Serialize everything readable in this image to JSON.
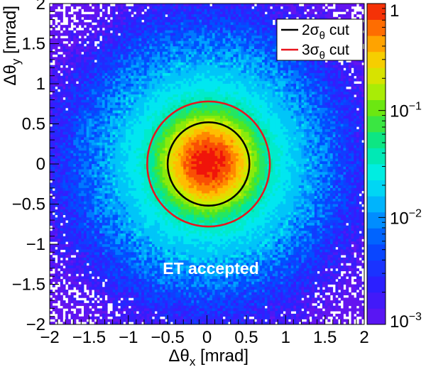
{
  "chart_data": {
    "type": "heatmap",
    "title": "",
    "xlabel_base": "Δθ",
    "xlabel_sub": "x",
    "xlabel_unit": " [mrad]",
    "ylabel_base": "Δθ",
    "ylabel_sub": "y",
    "ylabel_unit": " [mrad]",
    "xlim": [
      -2,
      2
    ],
    "ylim": [
      -2,
      2
    ],
    "xticks": [
      -2,
      -1.5,
      -1,
      -0.5,
      0,
      0.5,
      1,
      1.5,
      2
    ],
    "xtick_labels": [
      "−2",
      "−1.5",
      "−1",
      "−0.5",
      "0",
      "0.5",
      "1",
      "1.5",
      "2"
    ],
    "yticks": [
      -2,
      -1.5,
      -1,
      -0.5,
      0,
      0.5,
      1,
      1.5,
      2
    ],
    "ytick_labels": [
      "−2",
      "−1.5",
      "−1",
      "−0.5",
      "0",
      "0.5",
      "1",
      "1.5",
      "2"
    ],
    "colorbar": {
      "scale": "log",
      "range": [
        0.001,
        1
      ],
      "ticks": [
        {
          "value": 1,
          "base": "1",
          "exp": ""
        },
        {
          "value": 0.1,
          "base": "10",
          "exp": "−1"
        },
        {
          "value": 0.01,
          "base": "10",
          "exp": "−2"
        },
        {
          "value": 0.001,
          "base": "10",
          "exp": "−3"
        }
      ]
    },
    "distribution": {
      "shape": "2D Gaussian",
      "center": [
        0.02,
        0.02
      ],
      "sigma_mrad": 0.26
    },
    "circles": [
      {
        "label_base": "2σ",
        "label_sub": "θ",
        "label_suffix": " cut",
        "center": [
          0.02,
          0.0
        ],
        "radius": 0.52,
        "color": "#000000"
      },
      {
        "label_base": "3σ",
        "label_sub": "θ",
        "label_suffix": " cut",
        "center": [
          0.02,
          0.0
        ],
        "radius": 0.78,
        "color": "#e8141c"
      }
    ],
    "legend_position": "top-right",
    "annotation": {
      "text": "ET accepted",
      "x": 0.05,
      "y": -1.37,
      "color": "#ffffff"
    },
    "grid": false
  }
}
